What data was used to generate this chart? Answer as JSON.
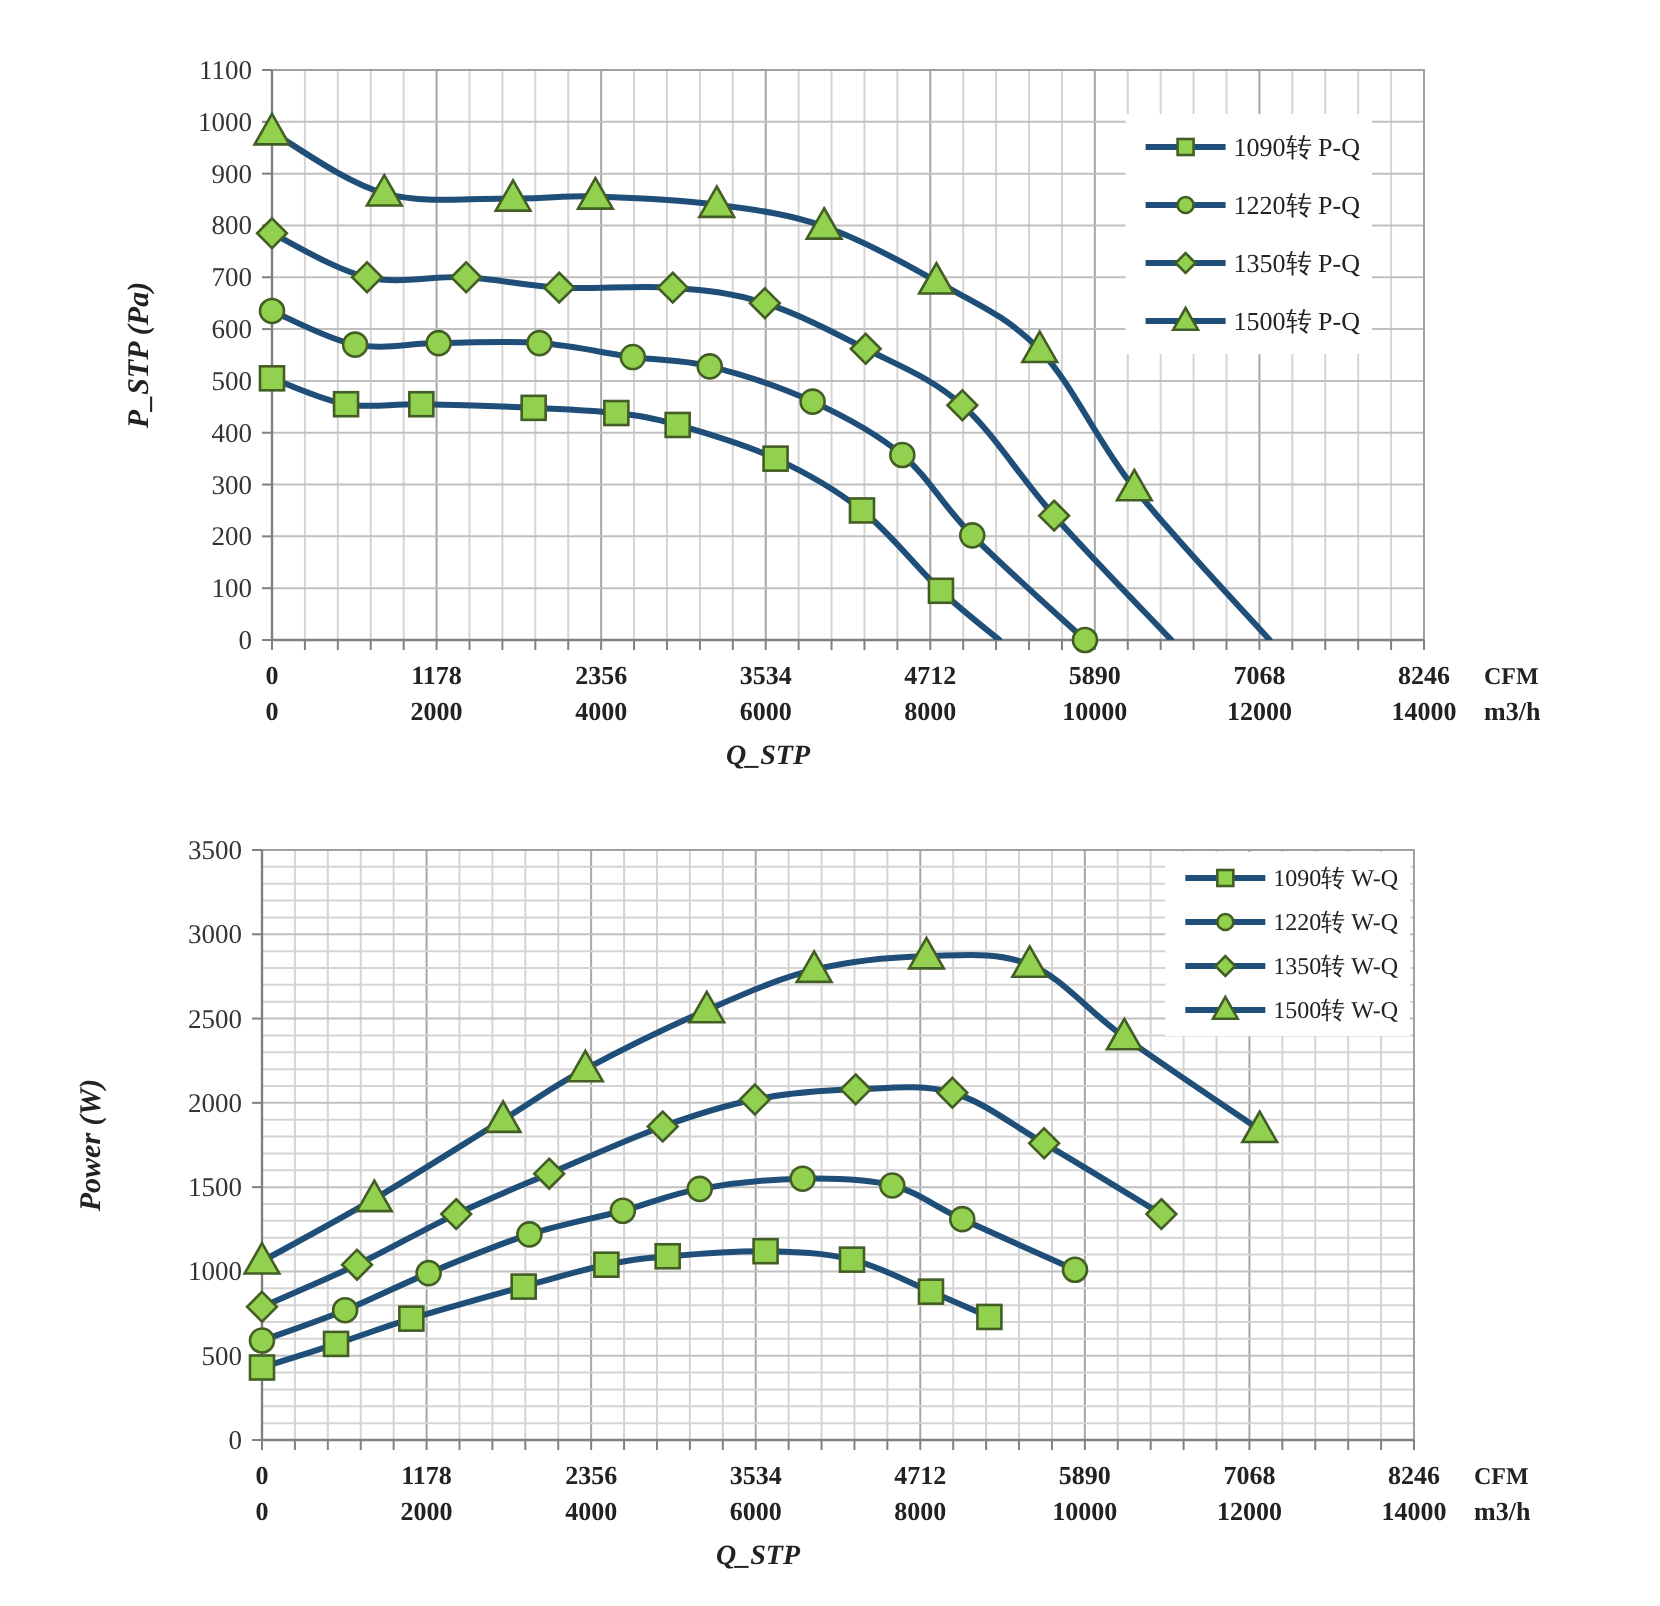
{
  "chart_data": [
    {
      "type": "line",
      "ylabel": "P_STP (Pa)",
      "xlabel": "Q_STP",
      "x2label": "CFM",
      "annotations": [
        "m3/h"
      ],
      "xlim": [
        0,
        14000
      ],
      "xticks": [
        0,
        2000,
        4000,
        6000,
        8000,
        10000,
        12000,
        14000
      ],
      "x2lim": [
        0,
        8246
      ],
      "x2ticks": [
        0,
        1178,
        2356,
        3534,
        4712,
        5890,
        7068,
        8246
      ],
      "ylim": [
        0,
        1100
      ],
      "yticks": [
        0,
        100,
        200,
        300,
        400,
        500,
        600,
        700,
        800,
        900,
        1000,
        1100
      ],
      "grid": true,
      "legend": "top right",
      "line_style": "solid",
      "series": [
        {
          "name": "1090转 P-Q",
          "color": "#1f4e79",
          "marker": "square",
          "x": [
            0,
            900,
            1815,
            3180,
            4185,
            4930,
            6120,
            7170,
            8130,
            8840
          ],
          "values": [
            505,
            455,
            455,
            448,
            438,
            415,
            350,
            250,
            95,
            0
          ],
          "colors": [
            "#92d050",
            "#92d050",
            "#92d050",
            "#92d050",
            "#92d050",
            "#92d050",
            "#92d050",
            "#92d050",
            "#92d050",
            null
          ]
        },
        {
          "name": "1220转 P-Q",
          "color": "#1f4e79",
          "marker": "circle",
          "x": [
            0,
            1010,
            2025,
            3250,
            4385,
            5320,
            6570,
            7660,
            8510,
            9880
          ],
          "values": [
            635,
            570,
            573,
            573,
            546,
            528,
            460,
            357,
            202,
            0
          ],
          "colors": [
            "#92d050",
            "#92d050",
            "#92d050",
            "#92d050",
            "#92d050",
            "#92d050",
            "#92d050",
            "#92d050",
            "#92d050",
            "#92d050"
          ]
        },
        {
          "name": "1350转 P-Q",
          "color": "#1f4e79",
          "marker": "diamond",
          "x": [
            0,
            1155,
            2360,
            3490,
            4870,
            5990,
            7215,
            8390,
            9505,
            10930
          ],
          "values": [
            785,
            700,
            700,
            680,
            680,
            650,
            562,
            453,
            240,
            0
          ],
          "colors": [
            "#92d050",
            "#92d050",
            "#92d050",
            "#92d050",
            "#92d050",
            "#92d050",
            "#92d050",
            "#92d050",
            "#92d050",
            null
          ]
        },
        {
          "name": "1500转 P-Q",
          "color": "#1f4e79",
          "marker": "triangle",
          "x": [
            0,
            1365,
            2930,
            3930,
            5405,
            6710,
            8075,
            9330,
            10480,
            12125
          ],
          "values": [
            980,
            862,
            852,
            856,
            840,
            798,
            692,
            560,
            293,
            0
          ],
          "colors": [
            "#92d050",
            "#92d050",
            "#92d050",
            "#92d050",
            "#92d050",
            "#92d050",
            "#92d050",
            "#92d050",
            "#92d050",
            null
          ]
        }
      ]
    },
    {
      "type": "line",
      "ylabel": "Power (W)",
      "xlabel": "Q_STP",
      "x2label": "CFM",
      "annotations": [
        "m3/h"
      ],
      "xlim": [
        0,
        14000
      ],
      "xticks": [
        0,
        2000,
        4000,
        6000,
        8000,
        10000,
        12000,
        14000
      ],
      "x2lim": [
        0,
        8246
      ],
      "x2ticks": [
        0,
        1178,
        2356,
        3534,
        4712,
        5890,
        7068,
        8246
      ],
      "ylim": [
        0,
        3500
      ],
      "yticks": [
        0,
        500,
        1000,
        1500,
        2000,
        2500,
        3000,
        3500
      ],
      "grid": true,
      "legend": "top right",
      "line_style": "solid",
      "series": [
        {
          "name": "1090转 W-Q",
          "color": "#1f4e79",
          "marker": "square",
          "x": [
            0,
            900,
            1815,
            3180,
            4185,
            4930,
            6120,
            7170,
            8130,
            8840
          ],
          "values": [
            430,
            570,
            720,
            910,
            1040,
            1090,
            1120,
            1070,
            880,
            730
          ],
          "colors": [
            "#92d050",
            "#92d050",
            "#92d050",
            "#92d050",
            "#92d050",
            "#92d050",
            "#92d050",
            "#92d050",
            "#92d050",
            "#92d050"
          ]
        },
        {
          "name": "1220转 W-Q",
          "color": "#1f4e79",
          "marker": "circle",
          "x": [
            0,
            1010,
            2025,
            3250,
            4385,
            5320,
            6570,
            7660,
            8510,
            9880
          ],
          "values": [
            590,
            770,
            990,
            1220,
            1360,
            1490,
            1550,
            1510,
            1310,
            1010
          ],
          "colors": [
            "#92d050",
            "#92d050",
            "#92d050",
            "#92d050",
            "#92d050",
            "#92d050",
            "#92d050",
            "#92d050",
            "#92d050",
            "#92d050"
          ]
        },
        {
          "name": "1350转 W-Q",
          "color": "#1f4e79",
          "marker": "diamond",
          "x": [
            0,
            1155,
            2360,
            3490,
            4870,
            5990,
            7215,
            8390,
            9505,
            10930
          ],
          "values": [
            790,
            1040,
            1340,
            1580,
            1860,
            2020,
            2080,
            2060,
            1760,
            1340
          ],
          "colors": [
            "#92d050",
            "#92d050",
            "#92d050",
            "#92d050",
            "#92d050",
            "#92d050",
            "#92d050",
            "#92d050",
            "#92d050",
            "#92d050"
          ]
        },
        {
          "name": "1500转 W-Q",
          "color": "#1f4e79",
          "marker": "triangle",
          "x": [
            0,
            1365,
            2930,
            3930,
            5405,
            6710,
            8075,
            9330,
            10480,
            12125
          ],
          "values": [
            1060,
            1430,
            1900,
            2200,
            2550,
            2790,
            2870,
            2820,
            2390,
            1840
          ],
          "colors": [
            "#92d050",
            "#92d050",
            "#92d050",
            "#92d050",
            "#92d050",
            "#92d050",
            "#92d050",
            "#92d050",
            "#92d050",
            "#92d050"
          ]
        }
      ]
    }
  ]
}
